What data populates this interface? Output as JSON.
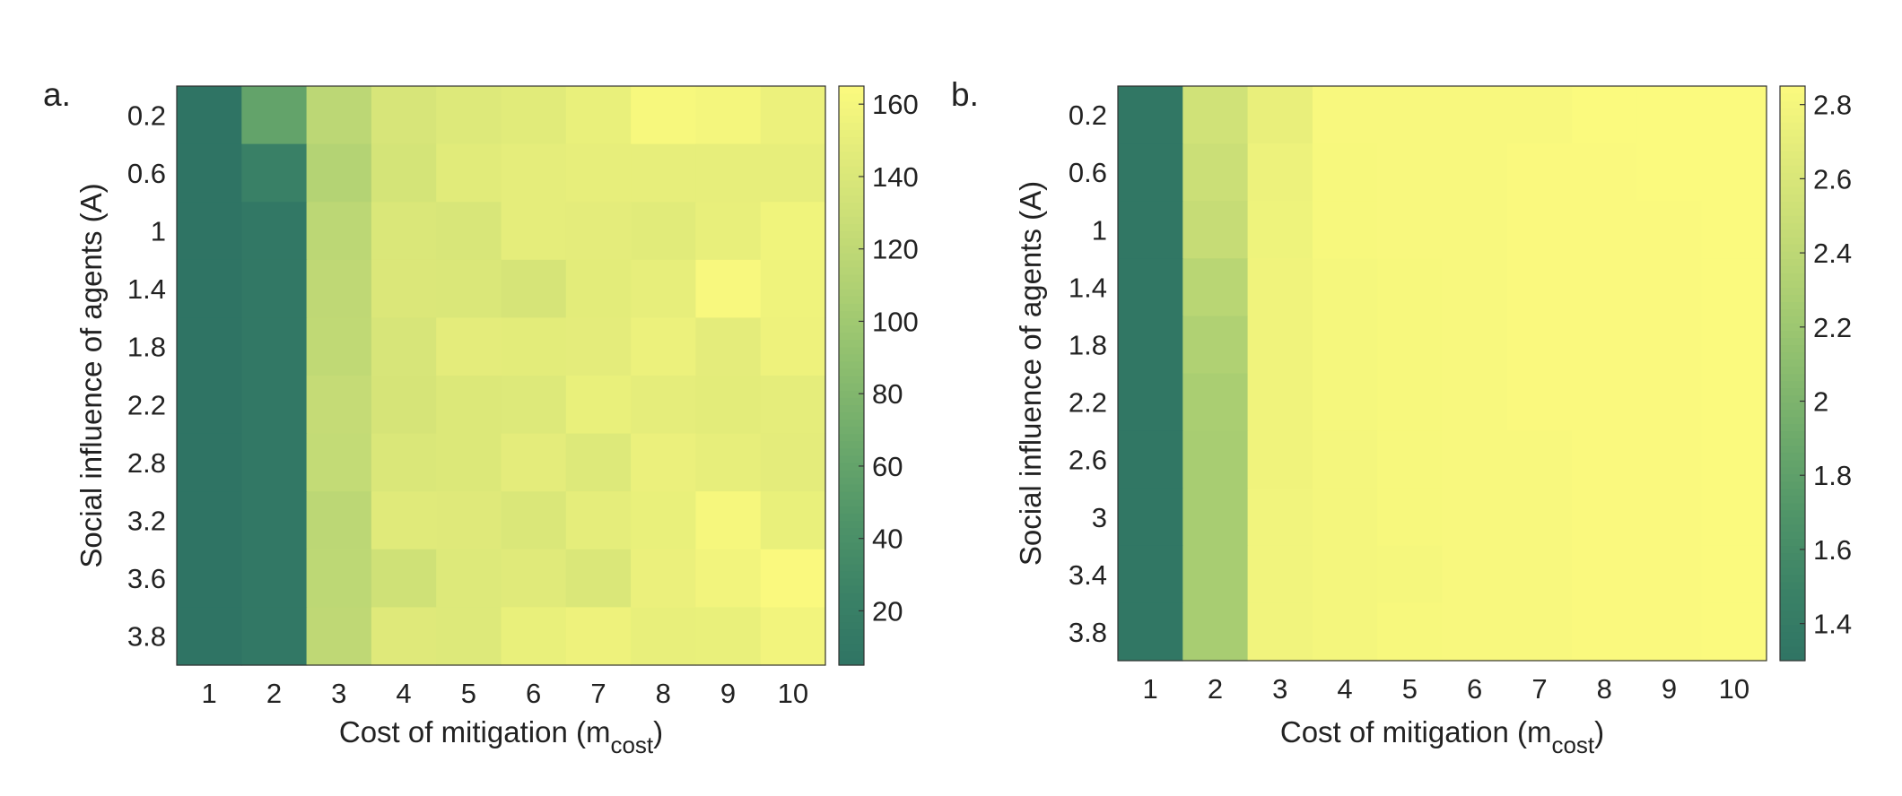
{
  "chart_data": [
    {
      "panel_label": "a.",
      "type": "heatmap",
      "xlabel_main": "Cost of mitigation (m",
      "xlabel_sub": "cost",
      "xlabel_close": ")",
      "ylabel": "Social influence of agents (A)",
      "x_categories": [
        "1",
        "2",
        "3",
        "4",
        "5",
        "6",
        "7",
        "8",
        "9",
        "10"
      ],
      "y_categories": [
        "0.2",
        "0.6",
        "1",
        "1.4",
        "1.8",
        "2.2",
        "2.8",
        "3.2",
        "3.6",
        "3.8"
      ],
      "colorbar_ticks": [
        20,
        40,
        60,
        80,
        100,
        120,
        140,
        160
      ],
      "color_range": [
        5,
        165
      ],
      "values": [
        [
          5,
          60,
          118,
          138,
          143,
          146,
          152,
          162,
          160,
          154
        ],
        [
          5,
          22,
          113,
          136,
          146,
          149,
          150,
          150,
          150,
          150
        ],
        [
          5,
          10,
          118,
          140,
          139,
          149,
          148,
          146,
          151,
          157
        ],
        [
          5,
          10,
          120,
          141,
          140,
          137,
          147,
          150,
          163,
          156
        ],
        [
          5,
          10,
          121,
          138,
          148,
          147,
          148,
          154,
          148,
          155
        ],
        [
          5,
          10,
          124,
          137,
          142,
          143,
          152,
          149,
          147,
          149
        ],
        [
          5,
          10,
          123,
          140,
          142,
          148,
          143,
          153,
          150,
          148
        ],
        [
          5,
          10,
          118,
          145,
          144,
          140,
          149,
          152,
          161,
          152
        ],
        [
          5,
          10,
          119,
          132,
          143,
          145,
          140,
          153,
          158,
          164
        ],
        [
          5,
          10,
          120,
          144,
          143,
          152,
          155,
          151,
          152,
          158
        ]
      ],
      "colormap": [
        "#2f7464",
        "#3b8266",
        "#4f9468",
        "#6aa86b",
        "#88bb6e",
        "#a8cd72",
        "#c6dc76",
        "#e0ea7a",
        "#fbfa7e"
      ]
    },
    {
      "panel_label": "b.",
      "type": "heatmap",
      "xlabel_main": "Cost of mitigation (m",
      "xlabel_sub": "cost",
      "xlabel_close": ")",
      "ylabel": "Social influence of agents (A)",
      "x_categories": [
        "1",
        "2",
        "3",
        "4",
        "5",
        "6",
        "7",
        "8",
        "9",
        "10"
      ],
      "y_categories": [
        "0.2",
        "0.6",
        "1",
        "1.4",
        "1.8",
        "2.2",
        "2.6",
        "3",
        "3.4",
        "3.8"
      ],
      "colorbar_ticks": [
        1.4,
        1.6,
        1.8,
        2,
        2.2,
        2.4,
        2.6,
        2.8
      ],
      "color_range": [
        1.3,
        2.85
      ],
      "values": [
        [
          1.34,
          2.54,
          2.72,
          2.83,
          2.83,
          2.83,
          2.83,
          2.85,
          2.85,
          2.85
        ],
        [
          1.34,
          2.5,
          2.75,
          2.82,
          2.83,
          2.83,
          2.84,
          2.84,
          2.85,
          2.85
        ],
        [
          1.34,
          2.46,
          2.76,
          2.82,
          2.83,
          2.83,
          2.84,
          2.84,
          2.84,
          2.85
        ],
        [
          1.34,
          2.38,
          2.77,
          2.81,
          2.82,
          2.83,
          2.84,
          2.84,
          2.84,
          2.85
        ],
        [
          1.34,
          2.32,
          2.77,
          2.81,
          2.82,
          2.83,
          2.84,
          2.84,
          2.84,
          2.85
        ],
        [
          1.34,
          2.28,
          2.77,
          2.81,
          2.82,
          2.83,
          2.84,
          2.84,
          2.84,
          2.85
        ],
        [
          1.34,
          2.27,
          2.77,
          2.8,
          2.82,
          2.83,
          2.83,
          2.84,
          2.84,
          2.85
        ],
        [
          1.34,
          2.27,
          2.78,
          2.8,
          2.82,
          2.83,
          2.83,
          2.84,
          2.84,
          2.85
        ],
        [
          1.34,
          2.27,
          2.78,
          2.8,
          2.81,
          2.83,
          2.83,
          2.84,
          2.84,
          2.85
        ],
        [
          1.34,
          2.27,
          2.78,
          2.8,
          2.82,
          2.83,
          2.83,
          2.84,
          2.84,
          2.85
        ]
      ],
      "colormap": [
        "#2f7464",
        "#3b8266",
        "#4f9468",
        "#6aa86b",
        "#88bb6e",
        "#a8cd72",
        "#c6dc76",
        "#e0ea7a",
        "#fbfa7e"
      ]
    }
  ]
}
